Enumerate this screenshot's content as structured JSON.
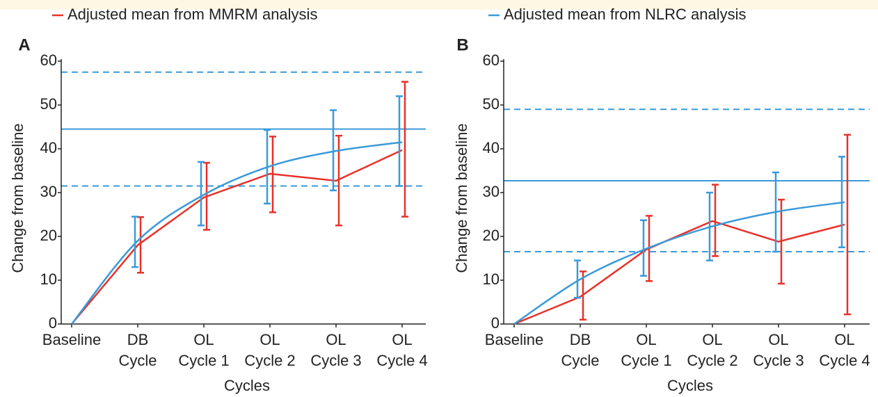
{
  "chart_data": [
    {
      "type": "line",
      "panel_label": "A",
      "y_label": "Change from baseline",
      "x_label": "Cycles",
      "categories": [
        [
          "Baseline"
        ],
        [
          "DB",
          "Cycle"
        ],
        [
          "OL",
          "Cycle 1"
        ],
        [
          "OL",
          "Cycle 2"
        ],
        [
          "OL",
          "Cycle 3"
        ],
        [
          "OL",
          "Cycle 4"
        ]
      ],
      "ylim": [
        0,
        60
      ],
      "yticks": [
        0,
        10,
        20,
        30,
        40,
        50,
        60
      ],
      "reference_lines": [
        {
          "value": 57.5,
          "style": "dashed",
          "color": "#3a9ad9"
        },
        {
          "value": 44.5,
          "style": "solid",
          "color": "#3a9ad9"
        },
        {
          "value": 31.5,
          "style": "dashed",
          "color": "#3a9ad9"
        }
      ],
      "series": [
        {
          "name": "Adjusted mean from MMRM analysis",
          "color": "#e8312a",
          "smooth": false,
          "values": [
            0,
            18,
            28.9,
            34.3,
            32.7,
            39.7
          ],
          "lower": [
            null,
            11.7,
            21.5,
            25.5,
            22.5,
            24.5
          ],
          "upper": [
            null,
            24.4,
            36.8,
            42.8,
            43,
            55.3
          ]
        },
        {
          "color": "#3a9ad9",
          "smooth": true,
          "values": [
            0,
            19,
            29.5,
            36,
            39.5,
            41.5
          ],
          "lower": [
            null,
            13,
            22.5,
            27.5,
            30.5,
            31.5
          ],
          "upper": [
            null,
            24.5,
            37,
            44.3,
            48.8,
            52
          ]
        }
      ]
    },
    {
      "type": "line",
      "panel_label": "B",
      "y_label": "Change from baseline",
      "x_label": "Cycles",
      "categories": [
        [
          "Baseline"
        ],
        [
          "DB",
          "Cycle"
        ],
        [
          "OL",
          "Cycle 1"
        ],
        [
          "OL",
          "Cycle 2"
        ],
        [
          "OL",
          "Cycle 3"
        ],
        [
          "OL",
          "Cycle 4"
        ]
      ],
      "ylim": [
        0,
        60
      ],
      "yticks": [
        0,
        10,
        20,
        30,
        40,
        50,
        60
      ],
      "reference_lines": [
        {
          "value": 49,
          "style": "dashed",
          "color": "#3a9ad9"
        },
        {
          "value": 32.7,
          "style": "solid",
          "color": "#3a9ad9"
        },
        {
          "value": 16.5,
          "style": "dashed",
          "color": "#3a9ad9"
        }
      ],
      "series": [
        {
          "color": "#e8312a",
          "smooth": false,
          "values": [
            0,
            6.2,
            17,
            23.5,
            18.8,
            22.7
          ],
          "lower": [
            null,
            1,
            9.8,
            15.5,
            9.2,
            2.2
          ],
          "upper": [
            null,
            12,
            24.7,
            31.8,
            28.4,
            43.2
          ]
        },
        {
          "name": "Adjusted mean from NLRC analysis",
          "color": "#3a9ad9",
          "smooth": true,
          "values": [
            0,
            10.2,
            17.2,
            22.3,
            25.7,
            27.8
          ],
          "lower": [
            null,
            6,
            11,
            14.5,
            16.5,
            17.5
          ],
          "upper": [
            null,
            14.5,
            23.7,
            30,
            34.6,
            38.2
          ]
        }
      ]
    }
  ]
}
